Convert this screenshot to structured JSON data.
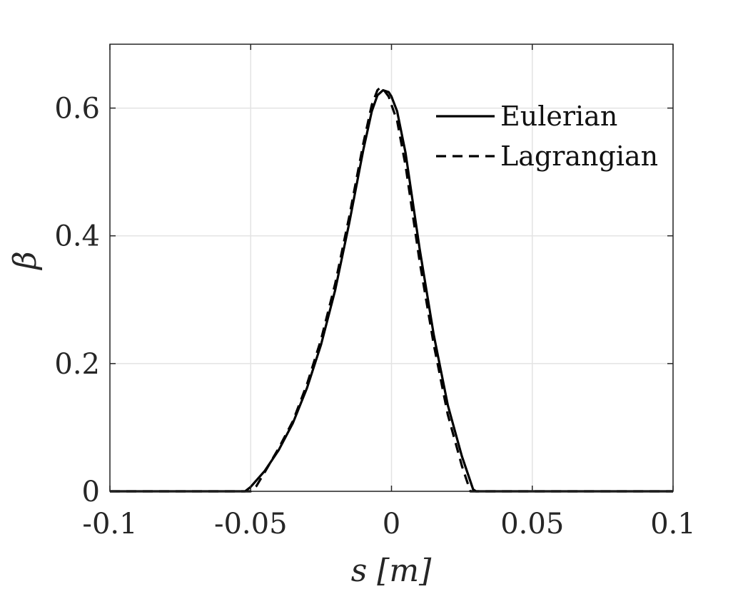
{
  "chart_data": {
    "type": "line",
    "xlabel": "s [m]",
    "ylabel": "β",
    "xlim": [
      -0.1,
      0.1
    ],
    "ylim": [
      0,
      0.7
    ],
    "xticks": [
      -0.1,
      -0.05,
      0,
      0.05,
      0.1
    ],
    "xtick_labels": [
      "-0.1",
      "-0.05",
      "0",
      "0.05",
      "0.1"
    ],
    "yticks": [
      0,
      0.2,
      0.4,
      0.6
    ],
    "ytick_labels": [
      "0",
      "0.2",
      "0.4",
      "0.6"
    ],
    "grid": true,
    "legend_position": "top-right",
    "series": [
      {
        "name": "Eulerian",
        "style": "solid",
        "color": "#000000",
        "x": [
          -0.1,
          -0.052,
          -0.05,
          -0.045,
          -0.04,
          -0.035,
          -0.03,
          -0.025,
          -0.02,
          -0.015,
          -0.01,
          -0.007,
          -0.005,
          -0.003,
          -0.001,
          0.0,
          0.002,
          0.005,
          0.01,
          0.015,
          0.02,
          0.025,
          0.029,
          0.03,
          0.1
        ],
        "y": [
          0,
          0,
          0.007,
          0.032,
          0.065,
          0.107,
          0.162,
          0.23,
          0.315,
          0.42,
          0.535,
          0.595,
          0.62,
          0.628,
          0.625,
          0.618,
          0.595,
          0.53,
          0.38,
          0.245,
          0.135,
          0.055,
          0.003,
          0,
          0
        ]
      },
      {
        "name": "Lagrangian",
        "style": "dashed",
        "color": "#000000",
        "x": [
          -0.1,
          -0.05,
          -0.048,
          -0.045,
          -0.04,
          -0.035,
          -0.03,
          -0.025,
          -0.02,
          -0.015,
          -0.01,
          -0.007,
          -0.005,
          -0.004,
          -0.003,
          -0.001,
          0.0,
          0.002,
          0.005,
          0.01,
          0.015,
          0.02,
          0.025,
          0.028,
          0.1
        ],
        "y": [
          0,
          0,
          0.008,
          0.03,
          0.068,
          0.11,
          0.168,
          0.238,
          0.325,
          0.43,
          0.545,
          0.605,
          0.628,
          0.632,
          0.63,
          0.618,
          0.605,
          0.58,
          0.51,
          0.36,
          0.23,
          0.12,
          0.04,
          0,
          0
        ]
      }
    ]
  }
}
